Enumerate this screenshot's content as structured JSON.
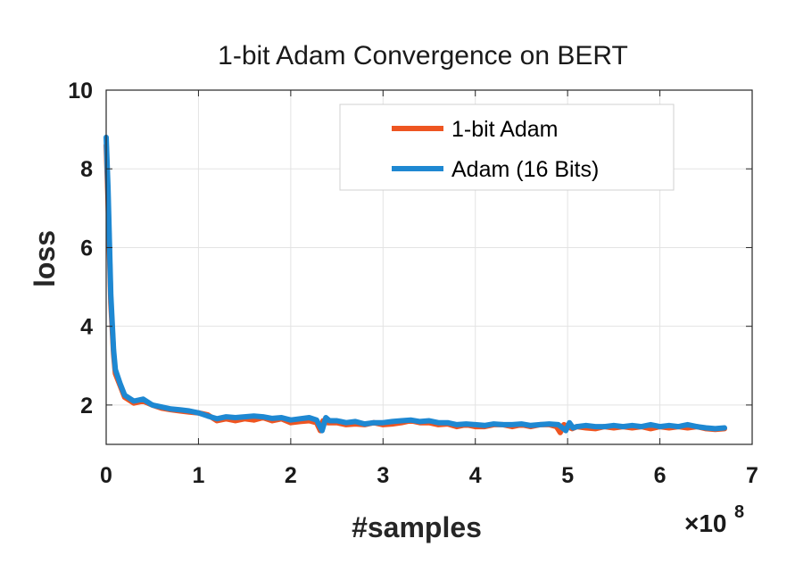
{
  "chart_data": {
    "type": "line",
    "title": "1-bit Adam Convergence on BERT",
    "xlabel": "#samples",
    "ylabel": "loss",
    "x_exponent_prefix": "×10",
    "x_exponent": "8",
    "xlim": [
      0,
      7
    ],
    "ylim": [
      1,
      10
    ],
    "xticks": [
      0,
      1,
      2,
      3,
      4,
      5,
      6,
      7
    ],
    "yticks": [
      2,
      4,
      6,
      8,
      10
    ],
    "grid": true,
    "legend_position": "top-right",
    "series": [
      {
        "name": "1-bit Adam",
        "color": "#EE5521",
        "x": [
          0.0,
          0.02,
          0.05,
          0.08,
          0.1,
          0.15,
          0.2,
          0.3,
          0.4,
          0.5,
          0.6,
          0.7,
          0.8,
          0.9,
          1.0,
          1.1,
          1.2,
          1.3,
          1.4,
          1.5,
          1.6,
          1.7,
          1.8,
          1.9,
          2.0,
          2.1,
          2.2,
          2.28,
          2.32,
          2.35,
          2.4,
          2.5,
          2.6,
          2.7,
          2.8,
          2.9,
          3.0,
          3.1,
          3.2,
          3.3,
          3.4,
          3.5,
          3.6,
          3.7,
          3.8,
          3.9,
          4.0,
          4.1,
          4.2,
          4.3,
          4.4,
          4.5,
          4.6,
          4.7,
          4.8,
          4.88,
          4.92,
          4.96,
          5.0,
          5.05,
          5.1,
          5.2,
          5.3,
          5.4,
          5.5,
          5.6,
          5.7,
          5.8,
          5.9,
          6.0,
          6.1,
          6.2,
          6.3,
          6.4,
          6.5,
          6.6,
          6.7
        ],
        "y": [
          8.6,
          7.2,
          4.6,
          3.3,
          2.8,
          2.5,
          2.2,
          2.05,
          2.1,
          2.0,
          1.92,
          1.88,
          1.85,
          1.82,
          1.8,
          1.75,
          1.6,
          1.65,
          1.6,
          1.65,
          1.62,
          1.68,
          1.6,
          1.65,
          1.55,
          1.58,
          1.6,
          1.55,
          1.35,
          1.6,
          1.55,
          1.55,
          1.5,
          1.52,
          1.5,
          1.55,
          1.5,
          1.52,
          1.55,
          1.6,
          1.55,
          1.55,
          1.5,
          1.52,
          1.45,
          1.5,
          1.45,
          1.45,
          1.5,
          1.5,
          1.45,
          1.5,
          1.45,
          1.5,
          1.5,
          1.45,
          1.3,
          1.5,
          1.45,
          1.4,
          1.45,
          1.42,
          1.4,
          1.45,
          1.42,
          1.45,
          1.42,
          1.45,
          1.4,
          1.45,
          1.42,
          1.45,
          1.42,
          1.45,
          1.4,
          1.38,
          1.4
        ]
      },
      {
        "name": "Adam (16 Bits)",
        "color": "#1E88D2",
        "x": [
          0.0,
          0.02,
          0.05,
          0.08,
          0.1,
          0.15,
          0.2,
          0.3,
          0.4,
          0.5,
          0.6,
          0.7,
          0.8,
          0.9,
          1.0,
          1.1,
          1.2,
          1.3,
          1.4,
          1.5,
          1.6,
          1.7,
          1.8,
          1.9,
          2.0,
          2.1,
          2.2,
          2.28,
          2.34,
          2.38,
          2.42,
          2.5,
          2.6,
          2.7,
          2.8,
          2.9,
          3.0,
          3.1,
          3.2,
          3.3,
          3.4,
          3.5,
          3.6,
          3.7,
          3.8,
          3.9,
          4.0,
          4.1,
          4.2,
          4.3,
          4.4,
          4.5,
          4.6,
          4.7,
          4.8,
          4.9,
          4.98,
          5.02,
          5.06,
          5.1,
          5.2,
          5.3,
          5.4,
          5.5,
          5.6,
          5.7,
          5.8,
          5.9,
          6.0,
          6.1,
          6.2,
          6.3,
          6.4,
          6.5,
          6.6,
          6.7
        ],
        "y": [
          8.8,
          7.5,
          4.8,
          3.4,
          2.9,
          2.55,
          2.25,
          2.1,
          2.15,
          2.0,
          1.95,
          1.9,
          1.88,
          1.85,
          1.8,
          1.72,
          1.65,
          1.7,
          1.68,
          1.7,
          1.72,
          1.7,
          1.66,
          1.68,
          1.62,
          1.65,
          1.68,
          1.62,
          1.35,
          1.68,
          1.6,
          1.6,
          1.55,
          1.58,
          1.52,
          1.55,
          1.55,
          1.58,
          1.6,
          1.62,
          1.58,
          1.6,
          1.55,
          1.55,
          1.5,
          1.52,
          1.5,
          1.48,
          1.52,
          1.5,
          1.5,
          1.52,
          1.48,
          1.5,
          1.52,
          1.5,
          1.35,
          1.55,
          1.42,
          1.45,
          1.48,
          1.45,
          1.45,
          1.48,
          1.45,
          1.48,
          1.45,
          1.5,
          1.45,
          1.48,
          1.45,
          1.5,
          1.45,
          1.42,
          1.4,
          1.42
        ]
      }
    ]
  }
}
